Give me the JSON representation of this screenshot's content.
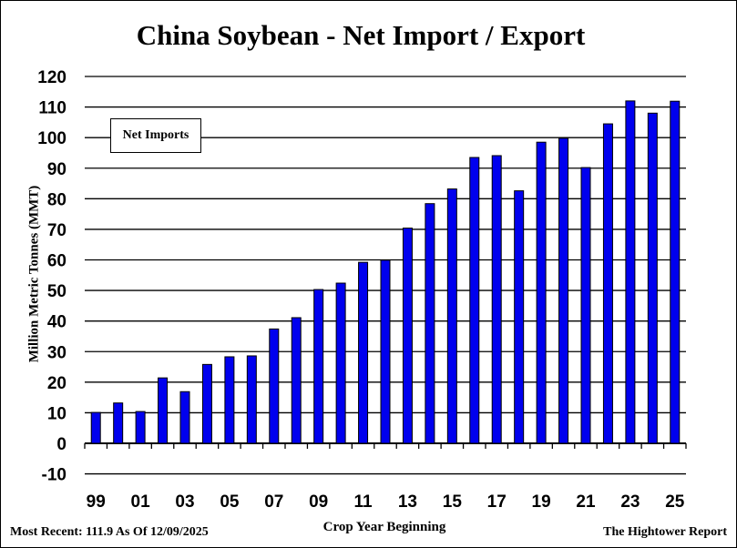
{
  "title": "China Soybean - Net Import / Export",
  "footer": {
    "left": "Most Recent: 111.9 As Of 12/09/2025",
    "right": "The Hightower Report"
  },
  "colors": {
    "bar_fill": "#0000ee",
    "bar_stroke": "#000000",
    "gridline": "#000000",
    "background": "#ffffff"
  },
  "chart_data": {
    "type": "bar",
    "title": "China Soybean - Net Import / Export",
    "xlabel": "Crop Year Beginning",
    "ylabel": "Million Metric Tonnes (MMT)",
    "ylim": [
      -10,
      120
    ],
    "yticks": [
      -10,
      0,
      10,
      20,
      30,
      40,
      50,
      60,
      70,
      80,
      90,
      100,
      110,
      120
    ],
    "grid": true,
    "legend_position": "top-left",
    "series": [
      {
        "name": "Net Imports",
        "values": [
          10.1,
          13.2,
          10.4,
          21.4,
          16.9,
          25.8,
          28.3,
          28.6,
          37.4,
          41.1,
          50.3,
          52.4,
          59.2,
          59.9,
          70.4,
          78.4,
          83.2,
          93.5,
          94.1,
          82.6,
          98.5,
          99.8,
          90.2,
          104.5,
          112.0,
          108.0,
          111.9
        ]
      }
    ],
    "categories": [
      "99",
      "00",
      "01",
      "02",
      "03",
      "04",
      "05",
      "06",
      "07",
      "08",
      "09",
      "10",
      "11",
      "12",
      "13",
      "14",
      "15",
      "16",
      "17",
      "18",
      "19",
      "20",
      "21",
      "22",
      "23",
      "24",
      "25"
    ],
    "tick_labels": [
      "99",
      "01",
      "03",
      "05",
      "07",
      "09",
      "11",
      "13",
      "15",
      "17",
      "19",
      "21",
      "23",
      "25"
    ]
  }
}
